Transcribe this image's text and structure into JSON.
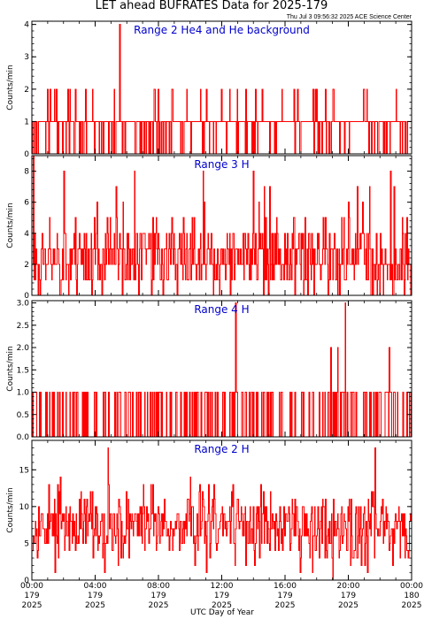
{
  "figure": {
    "title": "LET ahead BUFRATES Data for 2025-179",
    "timestamp": "Thu Jul  3 09:56:32 2025 ACE Science Center",
    "x_axis_label": "UTC Day of Year"
  },
  "colors": {
    "data": "#ff0000",
    "panel_title": "#0000cc",
    "axes": "#000000"
  },
  "chart_data": [
    {
      "type": "line",
      "title": "Range 2 He4 and He background",
      "ylabel": "Counts/min",
      "ylim": [
        0,
        4.1
      ],
      "yticks": [
        0,
        1,
        2,
        3,
        4
      ],
      "ytick_labels": [
        "0",
        "1",
        "2",
        "3",
        "4"
      ],
      "xlim": [
        0,
        24
      ],
      "baseline": 1,
      "low": 0,
      "high": 2,
      "p_low": 0.2,
      "p_high": 0.06,
      "spikes": [
        {
          "x": 5.55,
          "y": 4
        }
      ],
      "seed": 11
    },
    {
      "type": "line",
      "title": "Range 3 H",
      "ylabel": "Counts/min",
      "ylim": [
        0,
        9
      ],
      "yticks": [
        0,
        2,
        4,
        6,
        8
      ],
      "ytick_labels": [
        "0",
        "2",
        "4",
        "6",
        "8"
      ],
      "xlim": [
        0,
        24
      ],
      "mean": 2.5,
      "min": 0,
      "max": 8,
      "spikes": [
        {
          "x": 0.1,
          "y": 9
        }
      ],
      "seed": 23
    },
    {
      "type": "line",
      "title": "Range 4 H",
      "ylabel": "Counts/min",
      "ylim": [
        0,
        3.05
      ],
      "yticks": [
        0,
        0.5,
        1,
        1.5,
        2,
        2.5,
        3
      ],
      "ytick_labels": [
        "0.0",
        "0.5",
        "1.0",
        "1.5",
        "2.0",
        "2.5",
        "3.0"
      ],
      "xlim": [
        0,
        24
      ],
      "baseline": 0,
      "low": 0,
      "high": 1,
      "p_high": 0.3,
      "spikes": [
        {
          "x": 12.9,
          "y": 3
        },
        {
          "x": 19.8,
          "y": 3
        },
        {
          "x": 18.9,
          "y": 2
        },
        {
          "x": 19.3,
          "y": 2
        },
        {
          "x": 22.6,
          "y": 2
        }
      ],
      "seed": 37
    },
    {
      "type": "line",
      "title": "Range 2 H",
      "ylabel": "Counts/min",
      "ylim": [
        0,
        19
      ],
      "yticks": [
        0,
        5,
        10,
        15
      ],
      "ytick_labels": [
        "0",
        "5",
        "10",
        "15"
      ],
      "xlim": [
        0,
        24
      ],
      "mean": 7.5,
      "min": 1,
      "max": 16,
      "spikes": [
        {
          "x": 4.8,
          "y": 18
        },
        {
          "x": 21.7,
          "y": 18
        },
        {
          "x": 19.0,
          "y": 0
        }
      ],
      "seed": 53
    }
  ],
  "xticks": [
    {
      "x": 0,
      "time": "00:00",
      "day": "179",
      "year": "2025"
    },
    {
      "x": 4,
      "time": "04:00",
      "day": "179",
      "year": "2025"
    },
    {
      "x": 8,
      "time": "08:00",
      "day": "179",
      "year": "2025"
    },
    {
      "x": 12,
      "time": "12:00",
      "day": "179",
      "year": "2025"
    },
    {
      "x": 16,
      "time": "16:00",
      "day": "179",
      "year": "2025"
    },
    {
      "x": 20,
      "time": "20:00",
      "day": "179",
      "year": "2025"
    },
    {
      "x": 24,
      "time": "00:00",
      "day": "180",
      "year": "2025"
    }
  ]
}
